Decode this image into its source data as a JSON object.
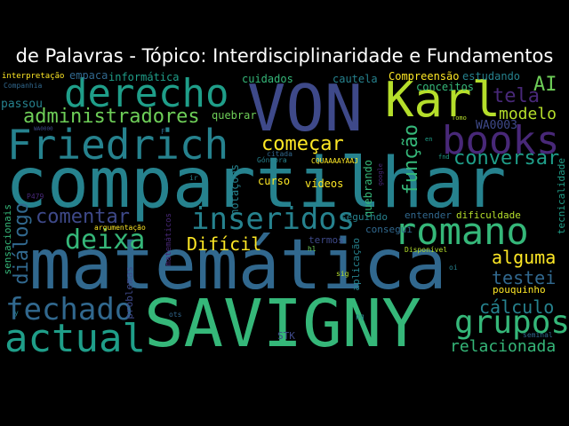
{
  "title": "de Palavras - Tópico: Interdisciplinaridade e Fundamentos",
  "palette": {
    "purple": "#482878",
    "indigo": "#3e4989",
    "blue": "#31688e",
    "teal": "#26828e",
    "green_teal": "#1f9e89",
    "green": "#35b779",
    "light_green": "#6ece58",
    "yellow_green": "#b5de2b",
    "yellow": "#fde725"
  },
  "words": [
    {
      "text": "compartilhar",
      "color": "#26828e"
    },
    {
      "text": "matemática",
      "color": "#31688e"
    },
    {
      "text": "SAVIGNY",
      "color": "#35b779"
    },
    {
      "text": "VON",
      "color": "#3e4989"
    },
    {
      "text": "Karl",
      "color": "#b5de2b"
    },
    {
      "text": "derecho",
      "color": "#1f9e89"
    },
    {
      "text": "Friedrich",
      "color": "#26828e"
    },
    {
      "text": "books",
      "color": "#482878"
    },
    {
      "text": "romano",
      "color": "#35b779"
    },
    {
      "text": "actual",
      "color": "#1f9e89"
    },
    {
      "text": "fechado",
      "color": "#31688e"
    },
    {
      "text": "grupos",
      "color": "#35b779"
    },
    {
      "text": "inseridos",
      "color": "#26828e"
    },
    {
      "text": "deixa",
      "color": "#35b779"
    },
    {
      "text": "administradores",
      "color": "#6ece58"
    },
    {
      "text": "diálogo",
      "color": "#31688e"
    },
    {
      "text": "função",
      "color": "#35b779"
    },
    {
      "text": "conversar",
      "color": "#1f9e89"
    },
    {
      "text": "começar",
      "color": "#fde725"
    },
    {
      "text": "comentar",
      "color": "#3e4989"
    },
    {
      "text": "Difícil",
      "color": "#fde725"
    },
    {
      "text": "alguma",
      "color": "#fde725"
    },
    {
      "text": "testei",
      "color": "#31688e"
    },
    {
      "text": "cálculo",
      "color": "#26828e"
    },
    {
      "text": "relacionada",
      "color": "#35b779"
    },
    {
      "text": "tela",
      "color": "#482878"
    },
    {
      "text": "modelo",
      "color": "#b5de2b"
    },
    {
      "text": "AI",
      "color": "#6ece58"
    },
    {
      "text": "WA0003",
      "color": "#3e4989"
    },
    {
      "text": "passou",
      "color": "#26828e"
    },
    {
      "text": "informática",
      "color": "#1f9e89"
    },
    {
      "text": "empaca",
      "color": "#31688e"
    },
    {
      "text": "cuidados",
      "color": "#35b779"
    },
    {
      "text": "cautela",
      "color": "#26828e"
    },
    {
      "text": "Compreensão",
      "color": "#fde725"
    },
    {
      "text": "estudando",
      "color": "#26828e"
    },
    {
      "text": "conceitos",
      "color": "#35b779"
    },
    {
      "text": "interpretação",
      "color": "#fde725"
    },
    {
      "text": "Companhia",
      "color": "#31688e"
    },
    {
      "text": "quebrar",
      "color": "#6ece58"
    },
    {
      "text": "curso",
      "color": "#fde725"
    },
    {
      "text": "vídeos",
      "color": "#fde725"
    },
    {
      "text": "quebrando",
      "color": "#35b779"
    },
    {
      "text": "notações",
      "color": "#26828e"
    },
    {
      "text": "seguindo",
      "color": "#26828e"
    },
    {
      "text": "consegui",
      "color": "#31688e"
    },
    {
      "text": "termos",
      "color": "#3e4989"
    },
    {
      "text": "entender",
      "color": "#31688e"
    },
    {
      "text": "dificuldade",
      "color": "#b5de2b"
    },
    {
      "text": "tecnicalidade",
      "color": "#1f9e89"
    },
    {
      "text": "sensacionais",
      "color": "#35b779"
    },
    {
      "text": "argumentação",
      "color": "#fde725"
    },
    {
      "text": "aplicação",
      "color": "#26828e"
    },
    {
      "text": "Disponível",
      "color": "#b5de2b"
    },
    {
      "text": "problemas",
      "color": "#3e4989"
    },
    {
      "text": "matemáticos",
      "color": "#482878"
    },
    {
      "text": "pouquinho",
      "color": "#fde725"
    },
    {
      "text": "Góngora",
      "color": "#26828e"
    },
    {
      "text": "CQUAAAAYAAJ",
      "color": "#fde725"
    },
    {
      "text": "STK",
      "color": "#3e4989"
    },
    {
      "text": "seminal",
      "color": "#31688e"
    },
    {
      "text": "citada",
      "color": "#31688e"
    },
    {
      "text": "Tomo",
      "color": "#b5de2b"
    },
    {
      "text": "sig",
      "color": "#b5de2b"
    },
    {
      "text": "pg",
      "color": "#26828e"
    },
    {
      "text": "hl",
      "color": "#6ece58"
    },
    {
      "text": "oi",
      "color": "#26828e"
    },
    {
      "text": "fnd",
      "color": "#1f9e89"
    },
    {
      "text": "ots",
      "color": "#31688e"
    },
    {
      "text": "ir",
      "color": "#26828e"
    },
    {
      "text": "en",
      "color": "#1f9e89"
    },
    {
      "text": "y",
      "color": "#26828e"
    },
    {
      "text": "google",
      "color": "#482878"
    },
    {
      "text": "P479",
      "color": "#482878"
    },
    {
      "text": "WA0000",
      "color": "#3e4989"
    },
    {
      "text": "F",
      "color": "#31688e"
    }
  ]
}
